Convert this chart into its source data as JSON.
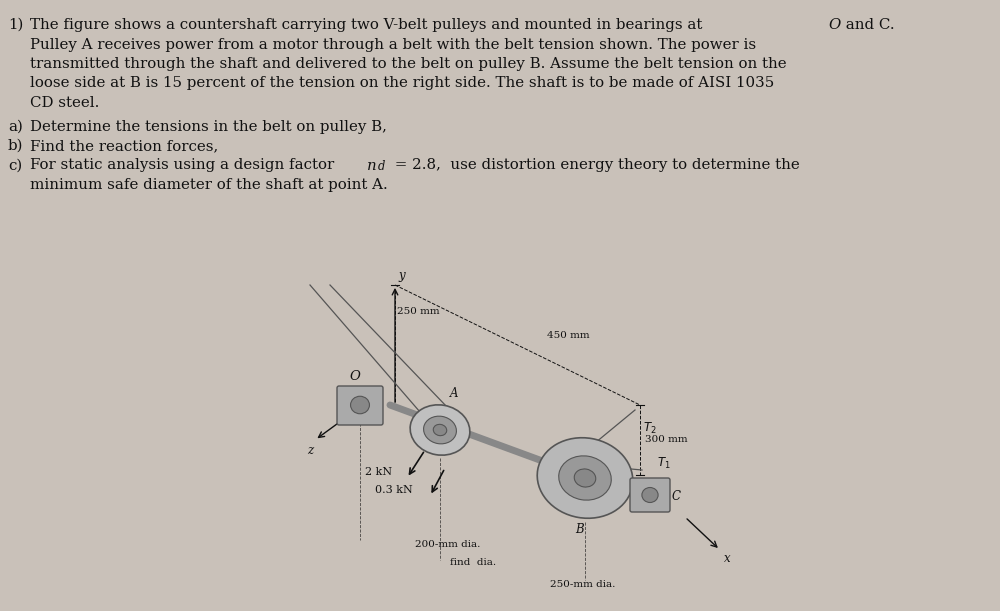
{
  "background_color": "#c9c1b9",
  "text_color": "#111111",
  "font_size_main": 10.8,
  "font_size_diagram": 8.5,
  "lines": [
    "1)  The figure shows a countershaft carrying two V-belt pulleys and mounted in bearings at |O| and C.",
    "    Pulley A receives power from a motor through a belt with the belt tension shown. The power is",
    "    transmitted through the shaft and delivered to the belt on pulley B. Assume the belt tension on the",
    "    loose side at B is 15 percent of the tension on the right side. The shaft is to be made of AISI 1035",
    "    CD steel."
  ],
  "part_a": "a)  Determine the tensions in the belt on pulley B,",
  "part_b": "b)  Find the reaction forces,",
  "part_c1": "c)  For static analysis using a design factor |nd| = 2.8,  use distortion energy theory to determine the",
  "part_c2": "    minimum safe diameter of the shaft at point A.",
  "dim1": "250 mm",
  "dim2": "450 mm",
  "dim3": "300 mm",
  "label_O": "O",
  "label_A": "A",
  "label_B": "B",
  "label_C": "C",
  "label_T2": "T2",
  "label_T1": "T1",
  "label_y": "y",
  "label_z": "z",
  "label_x": "x",
  "force1": "2 kN",
  "force2": "0.3 kN",
  "dia1": "200-mm dia.",
  "dia2": "find  dia.",
  "dia3": "250-mm dia."
}
